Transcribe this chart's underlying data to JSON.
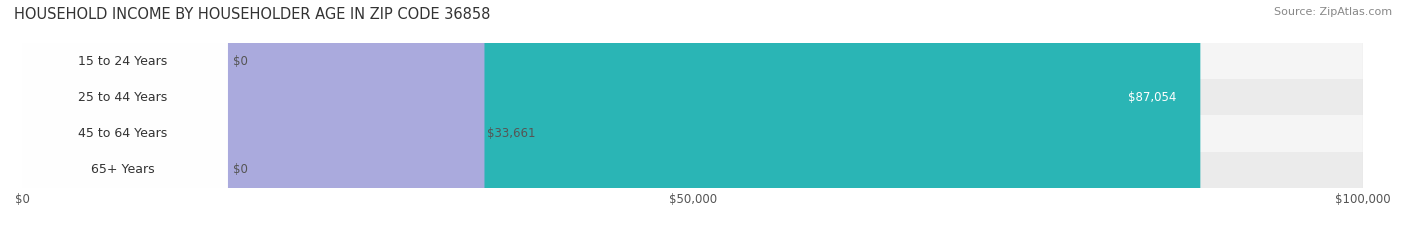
{
  "title": "HOUSEHOLD INCOME BY HOUSEHOLDER AGE IN ZIP CODE 36858",
  "source": "Source: ZipAtlas.com",
  "categories": [
    "15 to 24 Years",
    "25 to 44 Years",
    "45 to 64 Years",
    "65+ Years"
  ],
  "values": [
    0,
    87054,
    33661,
    0
  ],
  "bar_colors": [
    "#c9a8d4",
    "#2ab5b5",
    "#aaaadd",
    "#f4a0bb"
  ],
  "label_colors": [
    "#555555",
    "#ffffff",
    "#555555",
    "#555555"
  ],
  "row_bg_colors": [
    "#f0f0f0",
    "#e8e8e8",
    "#f0f0f0",
    "#e8e8e8"
  ],
  "xlim": [
    0,
    100000
  ],
  "xticks": [
    0,
    50000,
    100000
  ],
  "xticklabels": [
    "$0",
    "$50,000",
    "$100,000"
  ],
  "background_color": "#ffffff",
  "bar_height": 0.55,
  "figsize": [
    14.06,
    2.33
  ],
  "dpi": 100
}
